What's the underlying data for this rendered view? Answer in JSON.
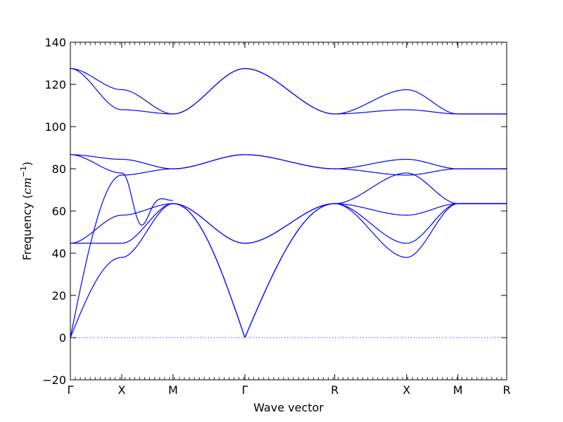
{
  "chart_data": {
    "type": "line",
    "title": "",
    "xlabel": "Wave vector",
    "ylabel_prefix": "Frequency (",
    "ylabel_unit": "cm",
    "ylabel_exp": "−1",
    "ylabel_suffix": ")",
    "ylim": [
      -20,
      140
    ],
    "yticks": [
      -20,
      0,
      20,
      40,
      60,
      80,
      100,
      120,
      140
    ],
    "ytick_labels": [
      "−20",
      "0",
      "20",
      "40",
      "60",
      "80",
      "100",
      "120",
      "140"
    ],
    "xlim": [
      0,
      8.5
    ],
    "xticks": [
      0,
      1,
      2,
      3.4,
      5.15,
      6.55,
      7.55,
      8.5
    ],
    "xtick_labels": [
      "Γ",
      "X",
      "M",
      "Γ",
      "R",
      "X",
      "M",
      "R"
    ],
    "line_color": "#0000ff",
    "zero_line_style": "dotted",
    "grid": false,
    "segments": [
      {
        "from": "Γ",
        "to": "X",
        "x": [
          0,
          1
        ],
        "bands": [
          [
            0,
            38
          ],
          [
            0,
            77
          ],
          [
            44.7,
            44.7
          ],
          [
            44.7,
            58
          ],
          [
            86.7,
            78
          ],
          [
            86.7,
            84.5
          ],
          [
            127.5,
            108
          ],
          [
            127.5,
            117.5
          ]
        ]
      },
      {
        "from": "X",
        "to": "M",
        "x": [
          1,
          2
        ],
        "bands": [
          [
            38,
            63.5
          ],
          [
            44.7,
            63.5
          ],
          [
            58,
            63.5
          ],
          [
            77,
            80
          ],
          [
            78,
            65
          ],
          [
            84.5,
            80
          ],
          [
            108,
            106
          ],
          [
            117.5,
            106
          ]
        ]
      },
      {
        "from": "M",
        "to": "Γ",
        "x": [
          2,
          3.4
        ],
        "bands": [
          [
            63.5,
            0
          ],
          [
            63.5,
            0
          ],
          [
            63.5,
            44.7
          ],
          [
            63.5,
            44.7
          ],
          [
            80,
            86.7
          ],
          [
            80,
            86.7
          ],
          [
            106,
            127.5
          ],
          [
            106,
            127.5
          ]
        ]
      },
      {
        "from": "Γ",
        "to": "R",
        "x": [
          3.4,
          5.15
        ],
        "bands": [
          [
            0,
            63.5
          ],
          [
            0,
            63.5
          ],
          [
            44.7,
            63.5
          ],
          [
            44.7,
            63.5
          ],
          [
            86.7,
            80
          ],
          [
            86.7,
            80
          ],
          [
            127.5,
            106
          ],
          [
            127.5,
            106
          ]
        ]
      },
      {
        "from": "R",
        "to": "X",
        "x": [
          5.15,
          6.55
        ],
        "bands": [
          [
            63.5,
            38
          ],
          [
            63.5,
            44.7
          ],
          [
            63.5,
            58
          ],
          [
            63.5,
            78
          ],
          [
            80,
            77
          ],
          [
            80,
            84.5
          ],
          [
            106,
            108
          ],
          [
            106,
            117.5
          ]
        ]
      },
      {
        "from": "X",
        "to": "M",
        "x": [
          6.55,
          7.55
        ],
        "bands": [
          [
            38,
            63.5
          ],
          [
            44.7,
            63.5
          ],
          [
            58,
            63.5
          ],
          [
            78,
            63.5
          ],
          [
            77,
            80
          ],
          [
            84.5,
            80
          ],
          [
            108,
            106
          ],
          [
            117.5,
            106
          ]
        ]
      },
      {
        "from": "M",
        "to": "R",
        "x": [
          7.55,
          8.5
        ],
        "bands": [
          [
            63.5,
            63.5
          ],
          [
            63.5,
            63.5
          ],
          [
            63.5,
            63.5
          ],
          [
            63.5,
            63.5
          ],
          [
            80,
            80
          ],
          [
            80,
            80
          ],
          [
            106,
            106
          ],
          [
            106,
            106
          ]
        ]
      }
    ],
    "extra_bumps": [
      {
        "segment": 1,
        "band": 4,
        "peak_t": 0.2,
        "peak_y": 66
      }
    ]
  }
}
